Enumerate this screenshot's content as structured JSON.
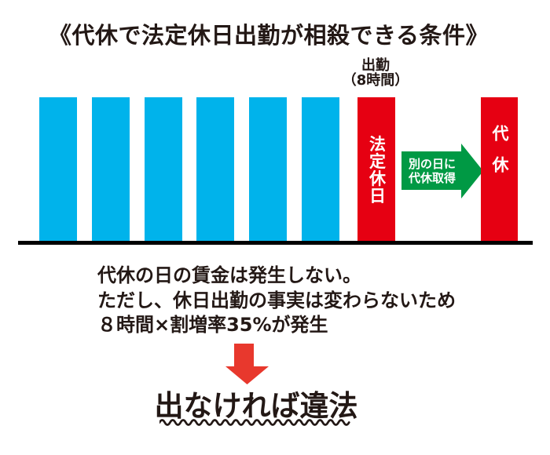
{
  "title": "《代休で法定休日出勤が相殺できる条件》",
  "colors": {
    "weekday_bar": "#00B3EB",
    "holiday_bar": "#E60012",
    "transfer_arrow": "#009944",
    "down_arrow": "#E8382D",
    "text": "#231815",
    "baseline": "#000000"
  },
  "diagram": {
    "weekday_bar_count": 6,
    "attendance_label": {
      "line1": "出勤",
      "line2": "（8時間）"
    },
    "holiday_bar_label": "法定休日",
    "compensatory_bar_label": "代休",
    "transfer_arrow_label": {
      "line1": "別の日に",
      "line2": "代休取得"
    }
  },
  "notes": {
    "line1": "代休の日の賃金は発生しない。",
    "line2": "ただし、休日出勤の事実は変わらないため",
    "line3": "８時間×割増率35%が発生"
  },
  "conclusion": "出なければ違法"
}
